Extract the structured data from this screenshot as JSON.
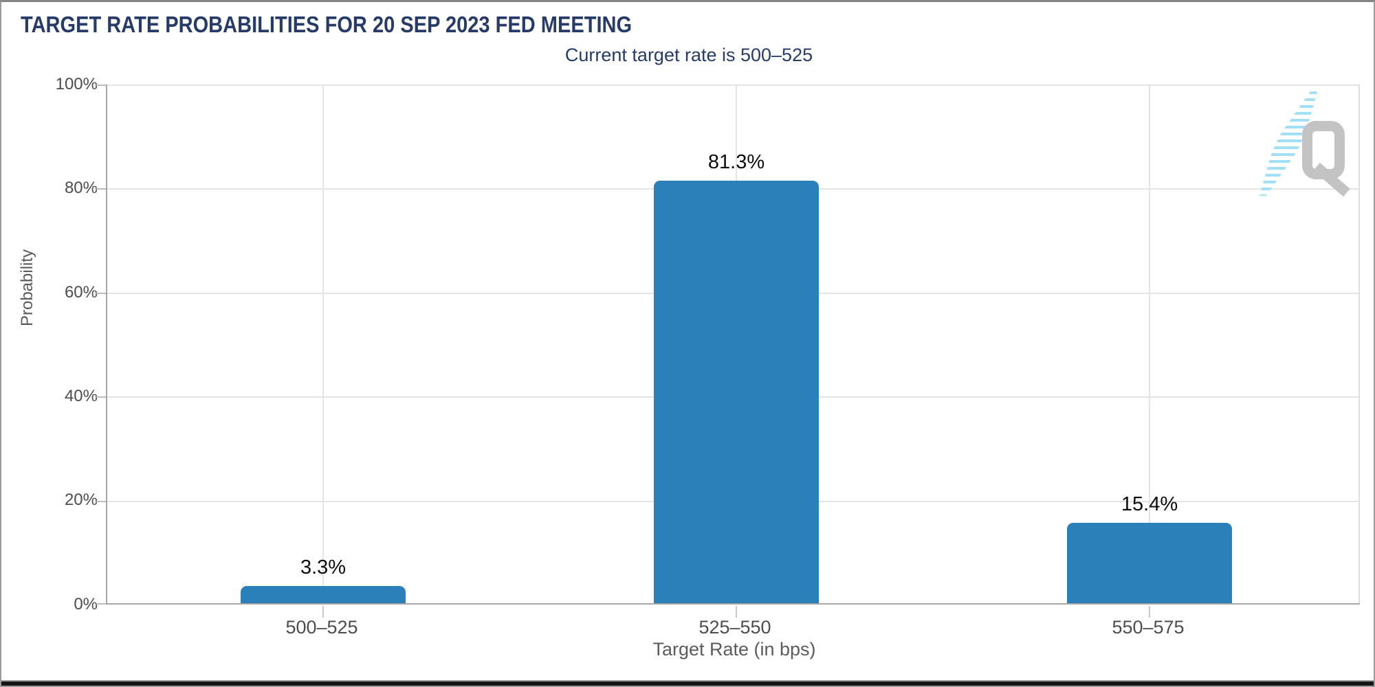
{
  "header": {
    "title": "TARGET RATE PROBABILITIES FOR 20 SEP 2023 FED MEETING",
    "subtitle": "Current target rate is 500–525"
  },
  "watermark": {
    "letter": "Q"
  },
  "colors": {
    "bar": "#2b80b9",
    "title_text": "#273b68",
    "axis_text": "#4d4d4d",
    "muted_text": "#5b5b5b",
    "logo_gray": "#c3c3c3",
    "logo_blue": "#a0dff6"
  },
  "chart_data": {
    "type": "bar",
    "title": "TARGET RATE PROBABILITIES FOR 20 SEP 2023 FED MEETING",
    "subtitle": "Current target rate is 500–525",
    "categories": [
      "500–525",
      "525–550",
      "550–575"
    ],
    "values": [
      3.3,
      81.3,
      15.4
    ],
    "value_labels": [
      "3.3%",
      "81.3%",
      "15.4%"
    ],
    "xlabel": "Target Rate (in bps)",
    "ylabel": "Probability",
    "ylim": [
      0,
      100
    ],
    "ytick_labels": [
      "0%",
      "20%",
      "40%",
      "60%",
      "80%",
      "100%"
    ],
    "grid": true,
    "legend": false,
    "bar_color": "#2b80b9"
  }
}
